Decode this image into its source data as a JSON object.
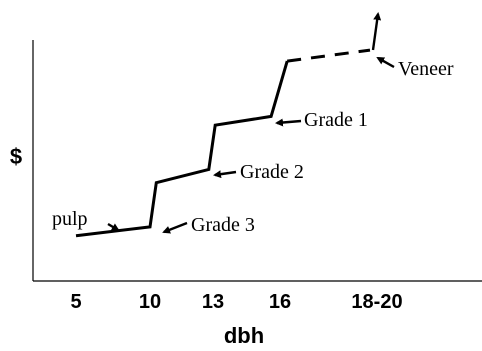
{
  "chart_data": {
    "type": "line",
    "title": "",
    "xlabel": "dbh",
    "ylabel": "$",
    "x_ticks": [
      "5",
      "10",
      "13",
      "16",
      "18-20"
    ],
    "grid": false,
    "legend": "none",
    "series": [
      {
        "points": [
          {
            "x": 5,
            "y": 0.6
          },
          {
            "x": 10,
            "y": 1.0
          },
          {
            "x": 10.3,
            "y": 3.0
          },
          {
            "x": 12.8,
            "y": 3.6
          },
          {
            "x": 13.1,
            "y": 5.6
          },
          {
            "x": 15.6,
            "y": 6.0
          },
          {
            "x": 16.2,
            "y": 8.5
          }
        ]
      },
      {
        "style": "dashed",
        "points": [
          {
            "x": 16.2,
            "y": 8.5
          },
          {
            "x": 18.5,
            "y": 9.0
          }
        ]
      }
    ],
    "annotations": [
      {
        "label": "pulp",
        "x": 7.5,
        "y": 0.85
      },
      {
        "label": "Grade 3",
        "x": 10.15,
        "y": 1.2
      },
      {
        "label": "Grade 2",
        "x": 13.0,
        "y": 3.7
      },
      {
        "label": "Grade 1",
        "x": 15.8,
        "y": 6.0
      },
      {
        "label": "Veneer",
        "x": 18.7,
        "y": 9.0
      }
    ]
  }
}
